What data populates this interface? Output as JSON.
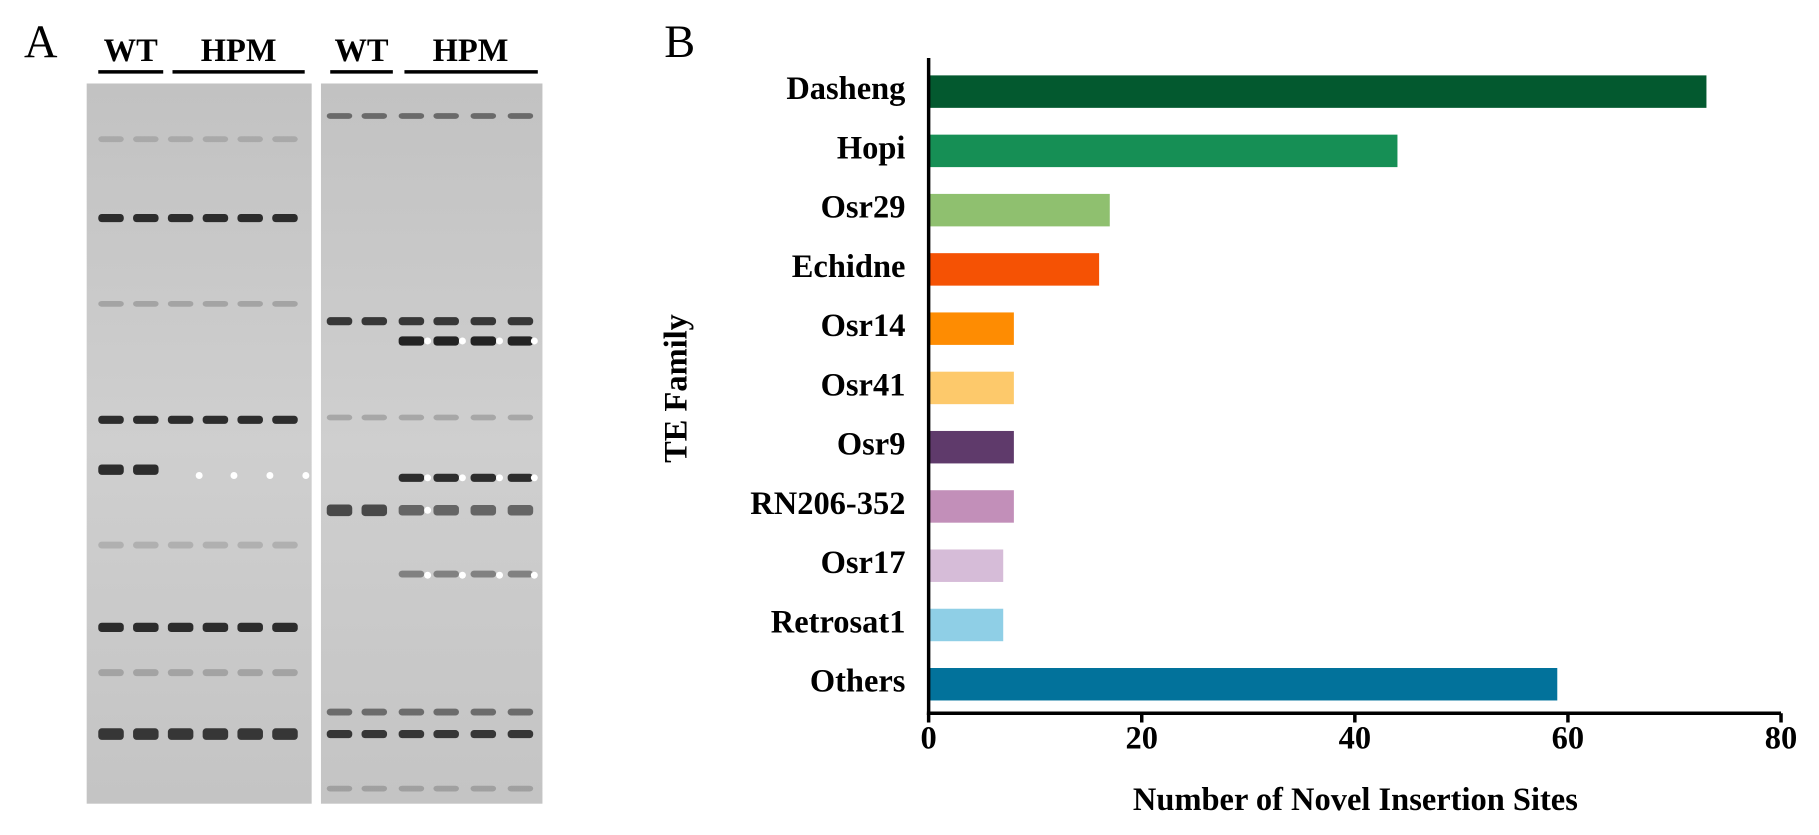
{
  "panel_a": {
    "label": "A",
    "lane_labels": [
      "WT",
      "HPM",
      "WT",
      "HPM"
    ]
  },
  "chart_data": {
    "type": "bar",
    "orientation": "horizontal",
    "panel_label": "B",
    "categories": [
      "Dasheng",
      "Hopi",
      "Osr29",
      "Echidne",
      "Osr14",
      "Osr41",
      "Osr9",
      "RN206-352",
      "Osr17",
      "Retrosat1",
      "Others"
    ],
    "values": [
      73,
      44,
      17,
      16,
      8,
      8,
      8,
      8,
      7,
      7,
      59
    ],
    "colors": [
      "#03592f",
      "#168f55",
      "#8fc06f",
      "#f55204",
      "#fe8c02",
      "#fdc96b",
      "#5f3a6b",
      "#c28fb9",
      "#d6bcd8",
      "#8fcfe6",
      "#02729b"
    ],
    "xlim": [
      0,
      80
    ],
    "xticks": [
      0,
      20,
      40,
      60,
      80
    ],
    "xlabel": "Number of Novel Insertion Sites",
    "ylabel": "TE Family"
  }
}
